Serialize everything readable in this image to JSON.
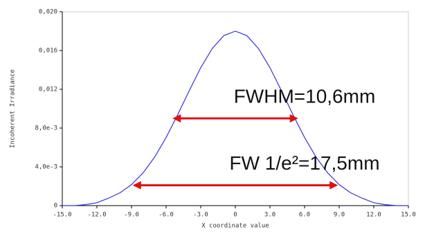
{
  "chart_data": {
    "type": "line",
    "xlabel": "X coordinate value",
    "ylabel": "Incoherent Irradiance",
    "x": [
      -15,
      -14,
      -13,
      -12,
      -11,
      -10,
      -9,
      -8,
      -7,
      -6,
      -5,
      -4,
      -3,
      -2,
      -1,
      0,
      1,
      2,
      3,
      4,
      5,
      6,
      7,
      8,
      9,
      10,
      11,
      12,
      13,
      14,
      15
    ],
    "series": [
      {
        "name": "Incoherent Irradiance",
        "color": "#3333dd",
        "values": [
          0,
          0,
          0.0001,
          0.0003,
          0.00076,
          0.00132,
          0.00217,
          0.00338,
          0.005,
          0.00703,
          0.00937,
          0.01185,
          0.01423,
          0.01621,
          0.01754,
          0.018,
          0.01754,
          0.01621,
          0.01423,
          0.01185,
          0.00937,
          0.00703,
          0.005,
          0.00338,
          0.00217,
          0.00132,
          0.00076,
          0.0003,
          0.0001,
          0,
          0
        ]
      }
    ],
    "xlim": [
      -15,
      15
    ],
    "xticks": [
      {
        "value": -15,
        "label": "-15.0"
      },
      {
        "value": -12,
        "label": "-12.0"
      },
      {
        "value": -9,
        "label": "-9.0"
      },
      {
        "value": -6,
        "label": "-6.0"
      },
      {
        "value": -3,
        "label": "-3.0"
      },
      {
        "value": 0,
        "label": "0"
      },
      {
        "value": 3,
        "label": "3.0"
      },
      {
        "value": 6,
        "label": "6.0"
      },
      {
        "value": 9,
        "label": "9.0"
      },
      {
        "value": 12,
        "label": "12.0"
      },
      {
        "value": 15,
        "label": "15.0"
      }
    ],
    "ylim": [
      0,
      0.02
    ],
    "yticks": [
      0,
      {
        "value": 0.004,
        "label": "4,0e-3"
      },
      {
        "value": 0.008,
        "label": "8,0e-3"
      },
      {
        "value": 0.012,
        "label": "0,012"
      },
      {
        "value": 0.016,
        "label": "0,016"
      },
      {
        "value": 0.02,
        "label": "0,020"
      }
    ],
    "annotations": [
      {
        "text": "FWHM=10,6mm",
        "x": [
          -5.3,
          5.3
        ],
        "y": 0.009,
        "color": "#e01010"
      },
      {
        "text": "FW 1/e²=17,5mm",
        "x": [
          -8.75,
          8.75
        ],
        "y": 0.0021,
        "color": "#e01010"
      }
    ]
  }
}
